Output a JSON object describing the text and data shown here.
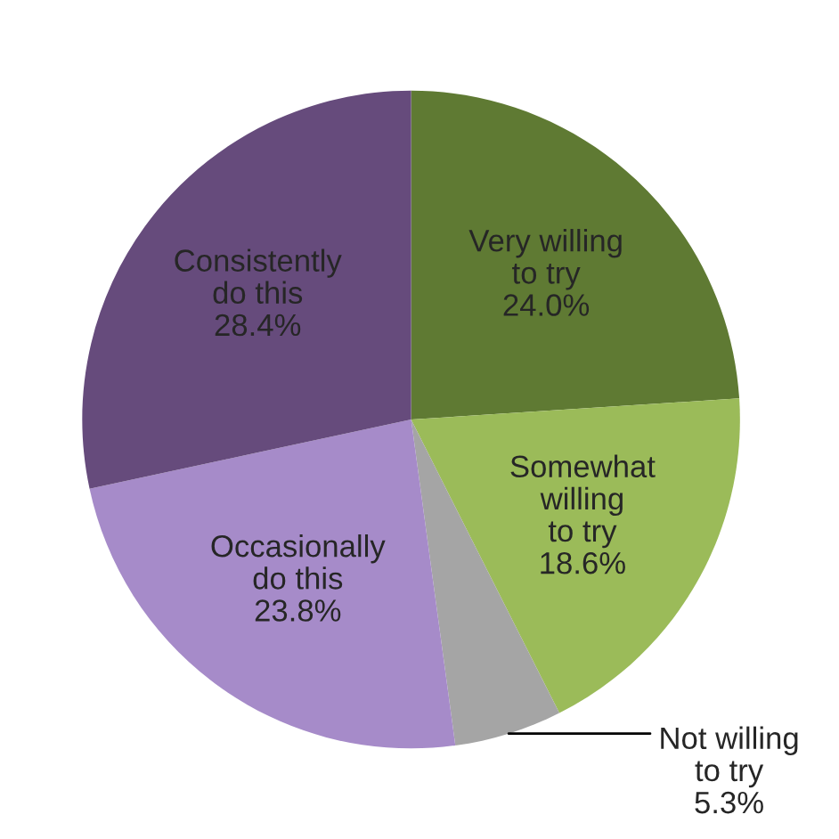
{
  "chart_data": {
    "type": "pie",
    "categories": [
      "Very willing\nto try",
      "Somewhat\nwilling\nto try",
      "Not willing\nto try",
      "Occasionally\ndo this",
      "Consistently\ndo this"
    ],
    "values": [
      24.0,
      18.6,
      5.3,
      23.8,
      28.4
    ],
    "colors": [
      "#5f7a33",
      "#9bbb59",
      "#a5a5a5",
      "#a68bc9",
      "#664b7c"
    ],
    "value_labels": [
      "24.0%",
      "18.6%",
      "5.3%",
      "23.8%",
      "28.4%"
    ]
  }
}
